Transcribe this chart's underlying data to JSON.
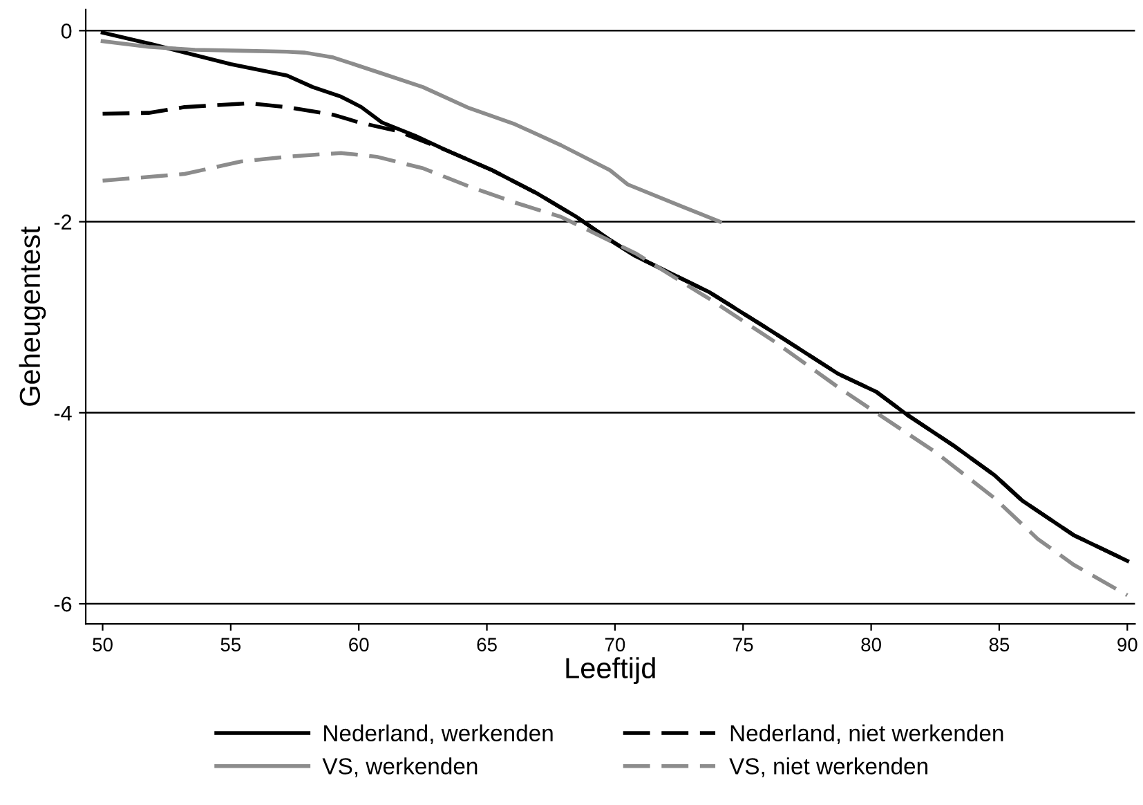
{
  "chart_data": {
    "type": "line",
    "xlabel": "Leeftijd",
    "ylabel": "Geheugentest",
    "xlim": [
      49.34,
      90.3
    ],
    "ylim": [
      -6.21,
      0.22
    ],
    "xticks": [
      50,
      55,
      60,
      65,
      70,
      75,
      80,
      85,
      90
    ],
    "yticks": [
      -6,
      -4,
      -2,
      0
    ],
    "grid": "y",
    "legend": "bottom",
    "marker": "none",
    "series": [
      {
        "name": "Nederland, werkenden",
        "color": "#000000",
        "line_style": "solid",
        "x": [
          50,
          51.9,
          55,
          57.2,
          58.2,
          59.3,
          60.1,
          60.9,
          62.2,
          63.4,
          65.2,
          67,
          68.5,
          69.8,
          70.8,
          73.7,
          76.2,
          78.7,
          80.2,
          81.4,
          83.2,
          84.8,
          85.9,
          87.9,
          90
        ],
        "values": [
          -0.02,
          -0.14,
          -0.35,
          -0.47,
          -0.59,
          -0.69,
          -0.8,
          -0.96,
          -1.1,
          -1.25,
          -1.46,
          -1.71,
          -1.95,
          -2.19,
          -2.36,
          -2.74,
          -3.16,
          -3.59,
          -3.78,
          -4.02,
          -4.34,
          -4.65,
          -4.92,
          -5.28,
          -5.55
        ]
      },
      {
        "name": "Nederland, niet werkenden",
        "color": "#000000",
        "line_style": "dashed",
        "x": [
          50,
          51.8,
          53.2,
          55.7,
          57.2,
          59,
          60,
          61.5,
          63.4,
          65.2,
          67,
          68.5,
          69.8,
          70.8,
          73.7,
          76.2,
          78.7,
          80.2,
          81.4,
          83.2,
          84.8,
          85.9,
          87.9,
          90
        ],
        "values": [
          -0.87,
          -0.86,
          -0.8,
          -0.76,
          -0.8,
          -0.88,
          -0.96,
          -1.05,
          -1.25,
          -1.46,
          -1.71,
          -1.95,
          -2.19,
          -2.36,
          -2.74,
          -3.16,
          -3.59,
          -3.78,
          -4.02,
          -4.34,
          -4.65,
          -4.92,
          -5.28,
          -5.55
        ]
      },
      {
        "name": "VS, werkenden",
        "color": "#8c8c8c",
        "line_style": "solid",
        "x": [
          50,
          51.8,
          53.6,
          55.4,
          57.2,
          57.9,
          59,
          60.7,
          62.5,
          64.3,
          66.1,
          67.9,
          69.8,
          70.5,
          72.7,
          74.1
        ],
        "values": [
          -0.11,
          -0.17,
          -0.2,
          -0.21,
          -0.22,
          -0.23,
          -0.28,
          -0.43,
          -0.59,
          -0.81,
          -0.98,
          -1.2,
          -1.46,
          -1.61,
          -1.85,
          -2.0
        ]
      },
      {
        "name": "VS, niet werkenden",
        "color": "#8c8c8c",
        "line_style": "dashed",
        "x": [
          50,
          53.2,
          55.4,
          57.2,
          59.3,
          60.7,
          62.5,
          64.3,
          66.1,
          67.9,
          70.8,
          73.7,
          76.2,
          78.7,
          80.2,
          82.5,
          84.8,
          86.5,
          87.9,
          90
        ],
        "values": [
          -1.57,
          -1.5,
          -1.37,
          -1.32,
          -1.28,
          -1.32,
          -1.44,
          -1.63,
          -1.8,
          -1.95,
          -2.33,
          -2.81,
          -3.25,
          -3.73,
          -4.0,
          -4.41,
          -4.89,
          -5.32,
          -5.59,
          -5.91
        ]
      }
    ]
  }
}
